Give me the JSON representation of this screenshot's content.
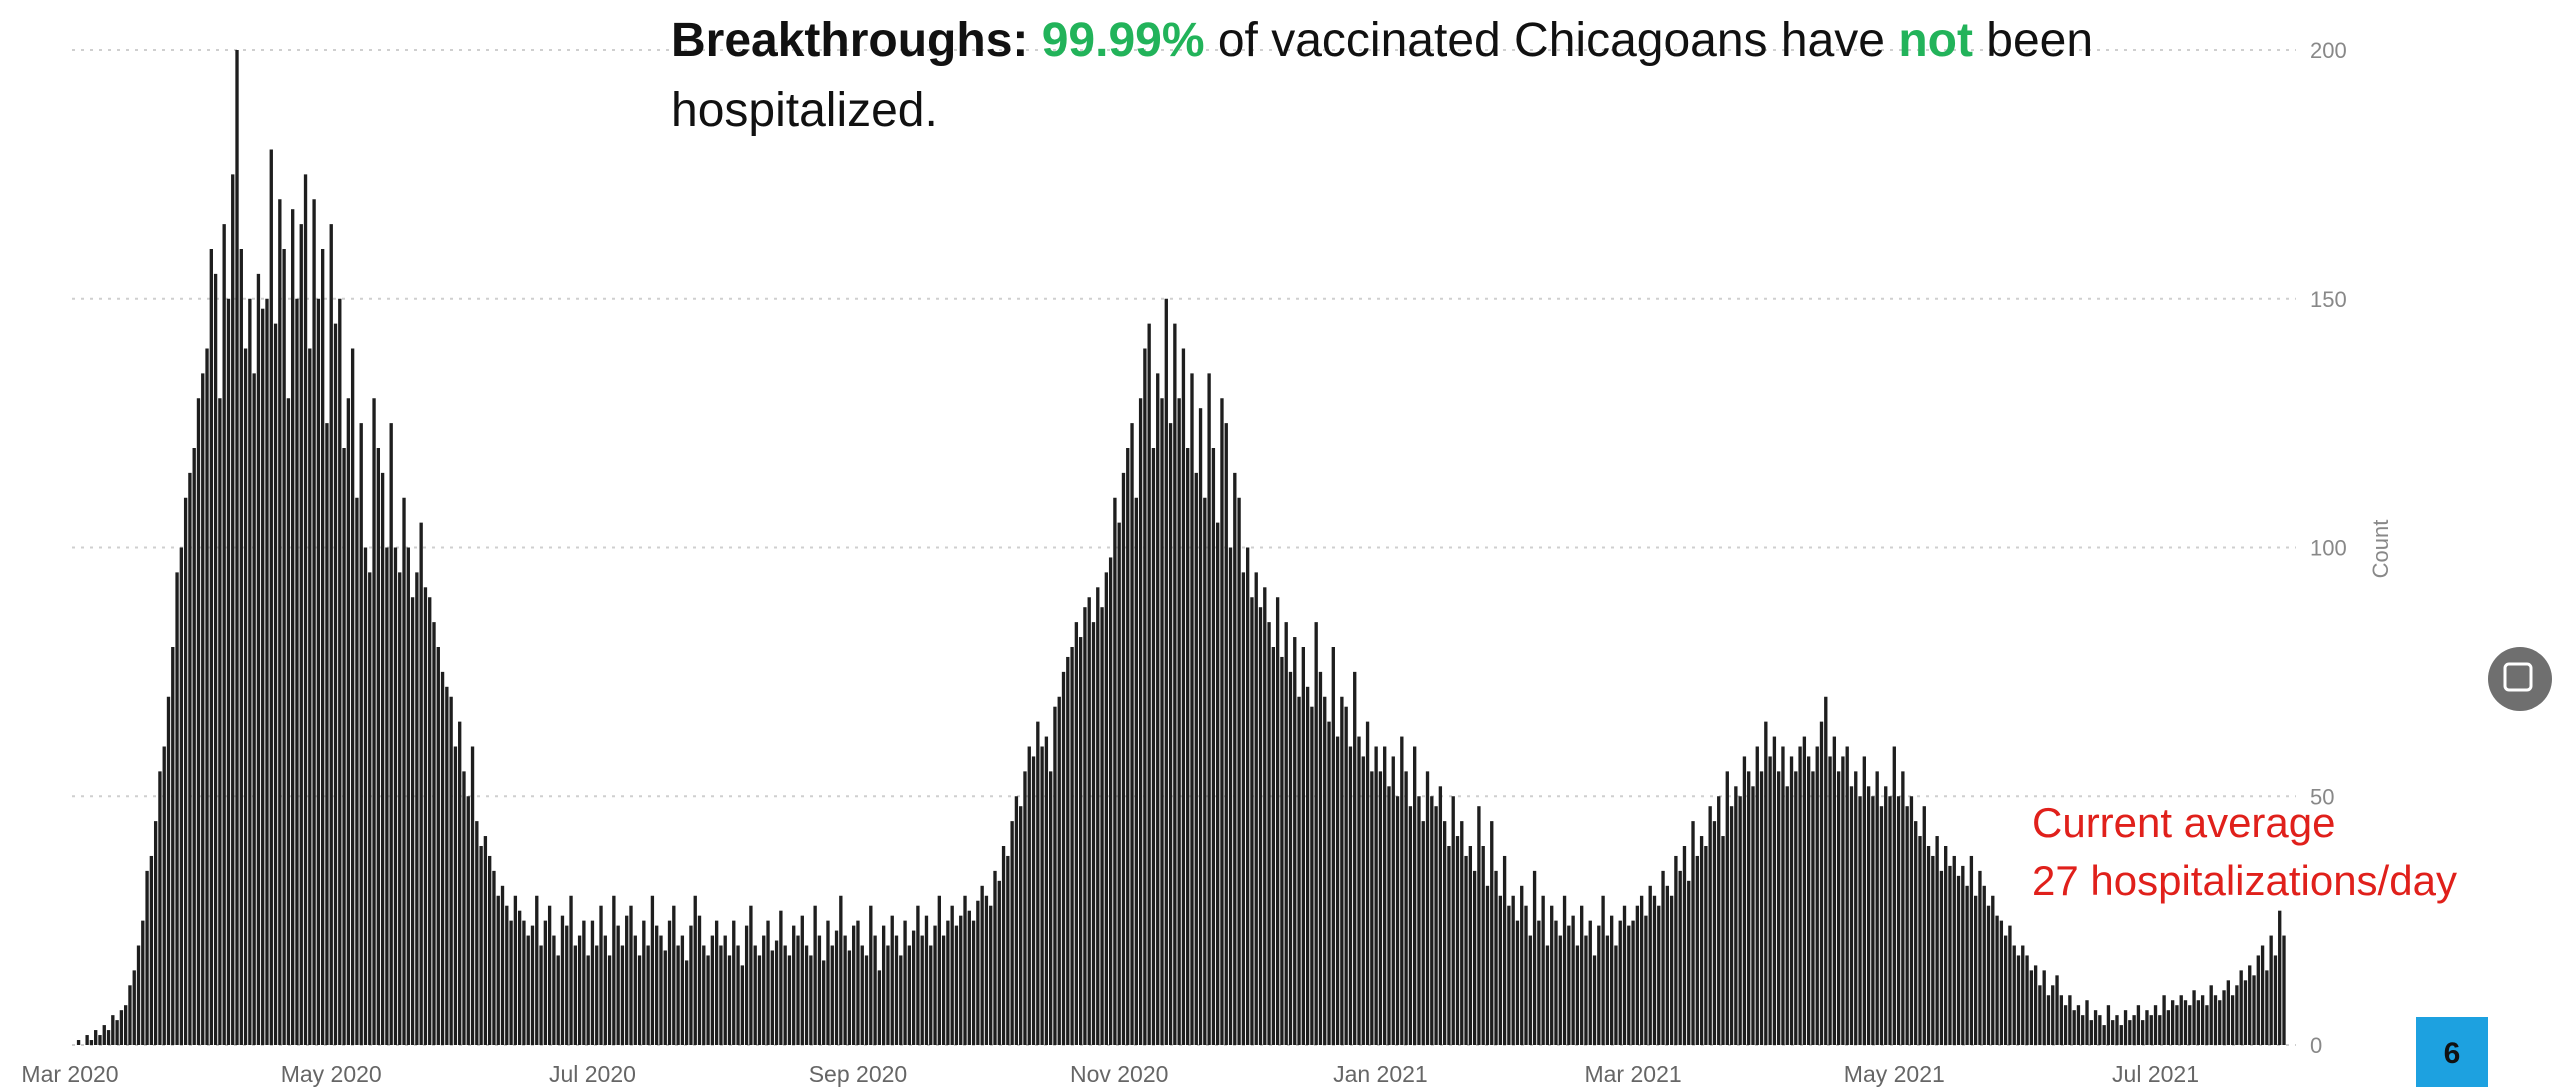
{
  "chart_data": {
    "type": "bar",
    "title": {
      "lead": "Breakthroughs:",
      "rate": "99.99%",
      "middle": "of vaccinated Chicagoans have",
      "not": "not",
      "end": "been",
      "line2": "hospitalized."
    },
    "annotation": [
      "Current average",
      "27 hospitalizations/day"
    ],
    "y_label": "Count",
    "page_number": "6",
    "color": "#1e1e1e",
    "highlight_color": "#22b35a",
    "annotation_color": "#e0201b",
    "grid": true,
    "xlim": [
      0,
      517
    ],
    "xticks": [
      {
        "value": 0,
        "label": "Mar 2020"
      },
      {
        "value": 61,
        "label": "May 2020"
      },
      {
        "value": 122,
        "label": "Jul 2020"
      },
      {
        "value": 184,
        "label": "Sep 2020"
      },
      {
        "value": 245,
        "label": "Nov 2020"
      },
      {
        "value": 306,
        "label": "Jan 2021"
      },
      {
        "value": 365,
        "label": "Mar 2021"
      },
      {
        "value": 426,
        "label": "May 2021"
      },
      {
        "value": 487,
        "label": "Jul 2021"
      }
    ],
    "ylim": [
      0,
      200
    ],
    "yticks": [
      0,
      50,
      100,
      150,
      200
    ],
    "values": [
      0,
      0,
      1,
      0,
      2,
      1,
      3,
      2,
      4,
      3,
      6,
      5,
      7,
      8,
      12,
      15,
      20,
      25,
      35,
      38,
      45,
      55,
      60,
      70,
      80,
      95,
      100,
      110,
      115,
      120,
      130,
      135,
      140,
      160,
      155,
      130,
      165,
      150,
      175,
      200,
      160,
      140,
      150,
      135,
      155,
      148,
      150,
      180,
      145,
      170,
      160,
      130,
      168,
      150,
      165,
      175,
      140,
      170,
      150,
      160,
      125,
      165,
      145,
      150,
      120,
      130,
      140,
      110,
      125,
      100,
      95,
      130,
      120,
      115,
      100,
      125,
      100,
      95,
      110,
      100,
      90,
      95,
      105,
      92,
      90,
      85,
      80,
      75,
      72,
      70,
      60,
      65,
      55,
      50,
      60,
      45,
      40,
      42,
      38,
      35,
      30,
      32,
      28,
      25,
      30,
      27,
      25,
      22,
      24,
      30,
      20,
      25,
      28,
      22,
      18,
      26,
      24,
      30,
      20,
      22,
      25,
      18,
      25,
      20,
      28,
      22,
      18,
      30,
      24,
      20,
      26,
      28,
      22,
      18,
      25,
      20,
      30,
      24,
      22,
      19,
      25,
      28,
      20,
      22,
      17,
      24,
      30,
      26,
      20,
      18,
      22,
      25,
      20,
      22,
      18,
      25,
      20,
      16,
      24,
      28,
      20,
      18,
      22,
      25,
      19,
      21,
      27,
      20,
      18,
      24,
      22,
      26,
      20,
      18,
      28,
      22,
      17,
      25,
      20,
      23,
      30,
      22,
      19,
      24,
      25,
      20,
      18,
      28,
      22,
      15,
      24,
      20,
      26,
      22,
      18,
      25,
      20,
      23,
      28,
      22,
      26,
      20,
      24,
      30,
      22,
      25,
      28,
      24,
      26,
      30,
      27,
      25,
      29,
      32,
      30,
      28,
      35,
      33,
      40,
      38,
      45,
      50,
      48,
      55,
      60,
      58,
      65,
      60,
      62,
      55,
      68,
      70,
      75,
      78,
      80,
      85,
      82,
      88,
      90,
      85,
      92,
      88,
      95,
      98,
      110,
      105,
      115,
      120,
      125,
      110,
      130,
      140,
      145,
      120,
      135,
      130,
      150,
      125,
      145,
      130,
      140,
      120,
      135,
      115,
      128,
      110,
      135,
      120,
      105,
      130,
      125,
      100,
      115,
      110,
      95,
      100,
      90,
      95,
      88,
      92,
      85,
      80,
      90,
      78,
      85,
      75,
      82,
      70,
      80,
      72,
      68,
      85,
      75,
      70,
      65,
      80,
      62,
      70,
      68,
      60,
      75,
      62,
      58,
      65,
      55,
      60,
      55,
      60,
      52,
      58,
      50,
      62,
      55,
      48,
      60,
      50,
      45,
      55,
      50,
      48,
      52,
      45,
      40,
      50,
      42,
      45,
      38,
      40,
      35,
      48,
      40,
      32,
      45,
      35,
      30,
      38,
      28,
      30,
      25,
      32,
      28,
      22,
      35,
      25,
      30,
      20,
      28,
      25,
      22,
      30,
      24,
      26,
      20,
      28,
      22,
      25,
      18,
      24,
      30,
      22,
      26,
      20,
      25,
      28,
      24,
      25,
      28,
      30,
      26,
      32,
      30,
      28,
      35,
      32,
      30,
      38,
      35,
      40,
      33,
      45,
      38,
      42,
      40,
      48,
      45,
      50,
      42,
      55,
      48,
      52,
      50,
      58,
      55,
      52,
      60,
      55,
      65,
      58,
      62,
      55,
      60,
      52,
      58,
      55,
      60,
      62,
      58,
      55,
      60,
      65,
      70,
      58,
      62,
      55,
      58,
      60,
      52,
      55,
      50,
      58,
      52,
      50,
      55,
      48,
      52,
      50,
      60,
      50,
      55,
      48,
      50,
      45,
      42,
      48,
      40,
      38,
      42,
      35,
      40,
      36,
      38,
      34,
      36,
      32,
      38,
      30,
      35,
      32,
      28,
      30,
      26,
      25,
      22,
      24,
      20,
      18,
      20,
      18,
      15,
      16,
      12,
      15,
      10,
      12,
      14,
      10,
      8,
      10,
      7,
      8,
      6,
      9,
      5,
      7,
      6,
      4,
      8,
      5,
      6,
      4,
      7,
      5,
      6,
      8,
      5,
      7,
      6,
      8,
      6,
      10,
      7,
      9,
      8,
      10,
      9,
      8,
      11,
      9,
      10,
      8,
      12,
      10,
      9,
      11,
      13,
      10,
      12,
      15,
      13,
      16,
      14,
      18,
      20,
      15,
      22,
      18,
      27,
      22
    ]
  }
}
